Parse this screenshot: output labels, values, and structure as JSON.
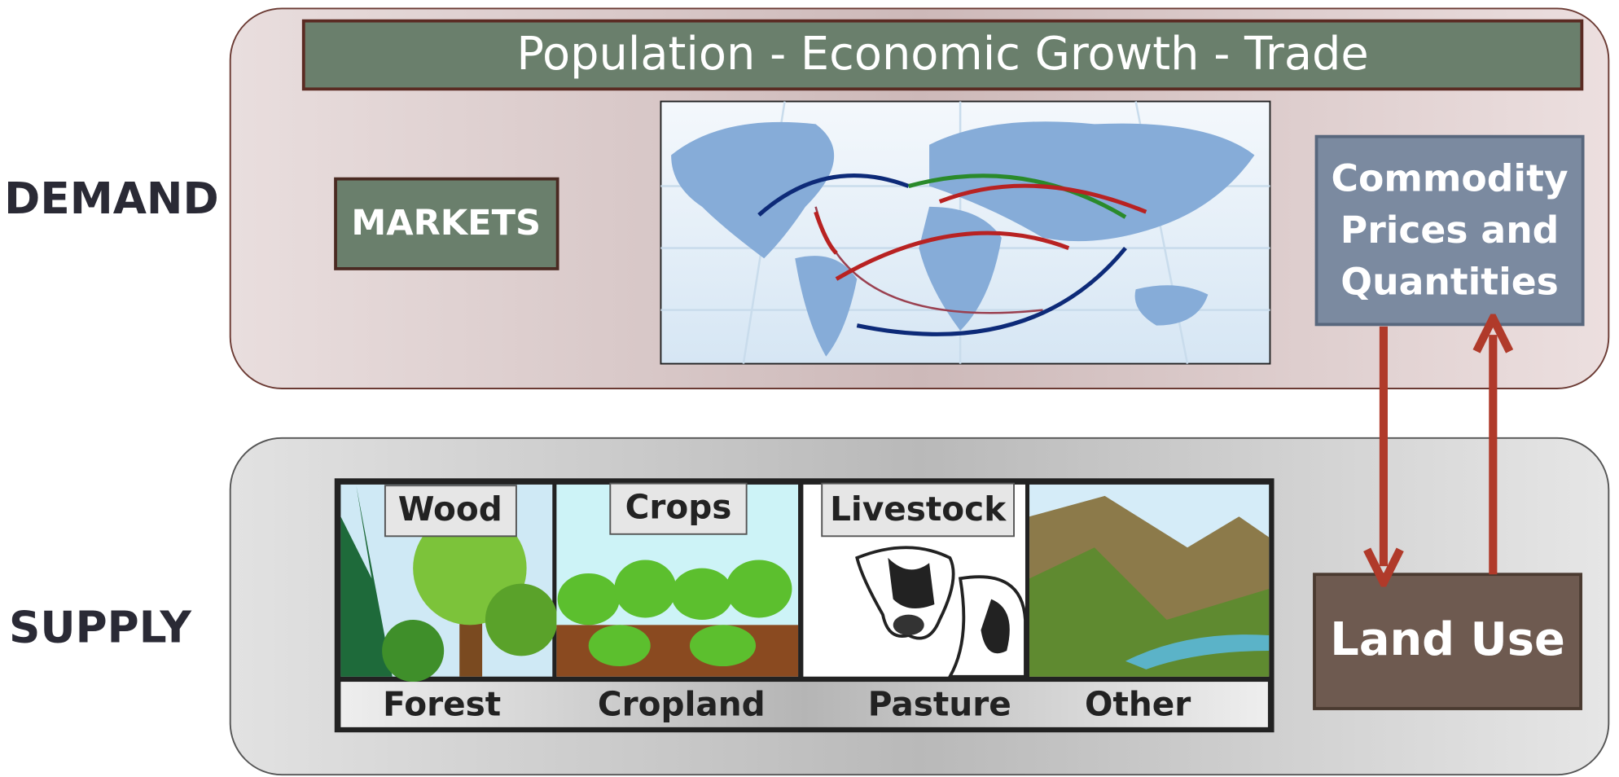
{
  "side_labels": {
    "demand": "DEMAND",
    "supply": "SUPPLY"
  },
  "banner": "Population - Economic Growth -  Trade",
  "markets": "MARKETS",
  "commodity": {
    "lines": [
      "Commodity",
      "Prices and",
      "Quantities"
    ]
  },
  "land_use": "Land Use",
  "products": [
    "Wood",
    "Crops",
    "Livestock"
  ],
  "land_types": [
    "Forest",
    "Cropland",
    "Pasture",
    "Other"
  ]
}
